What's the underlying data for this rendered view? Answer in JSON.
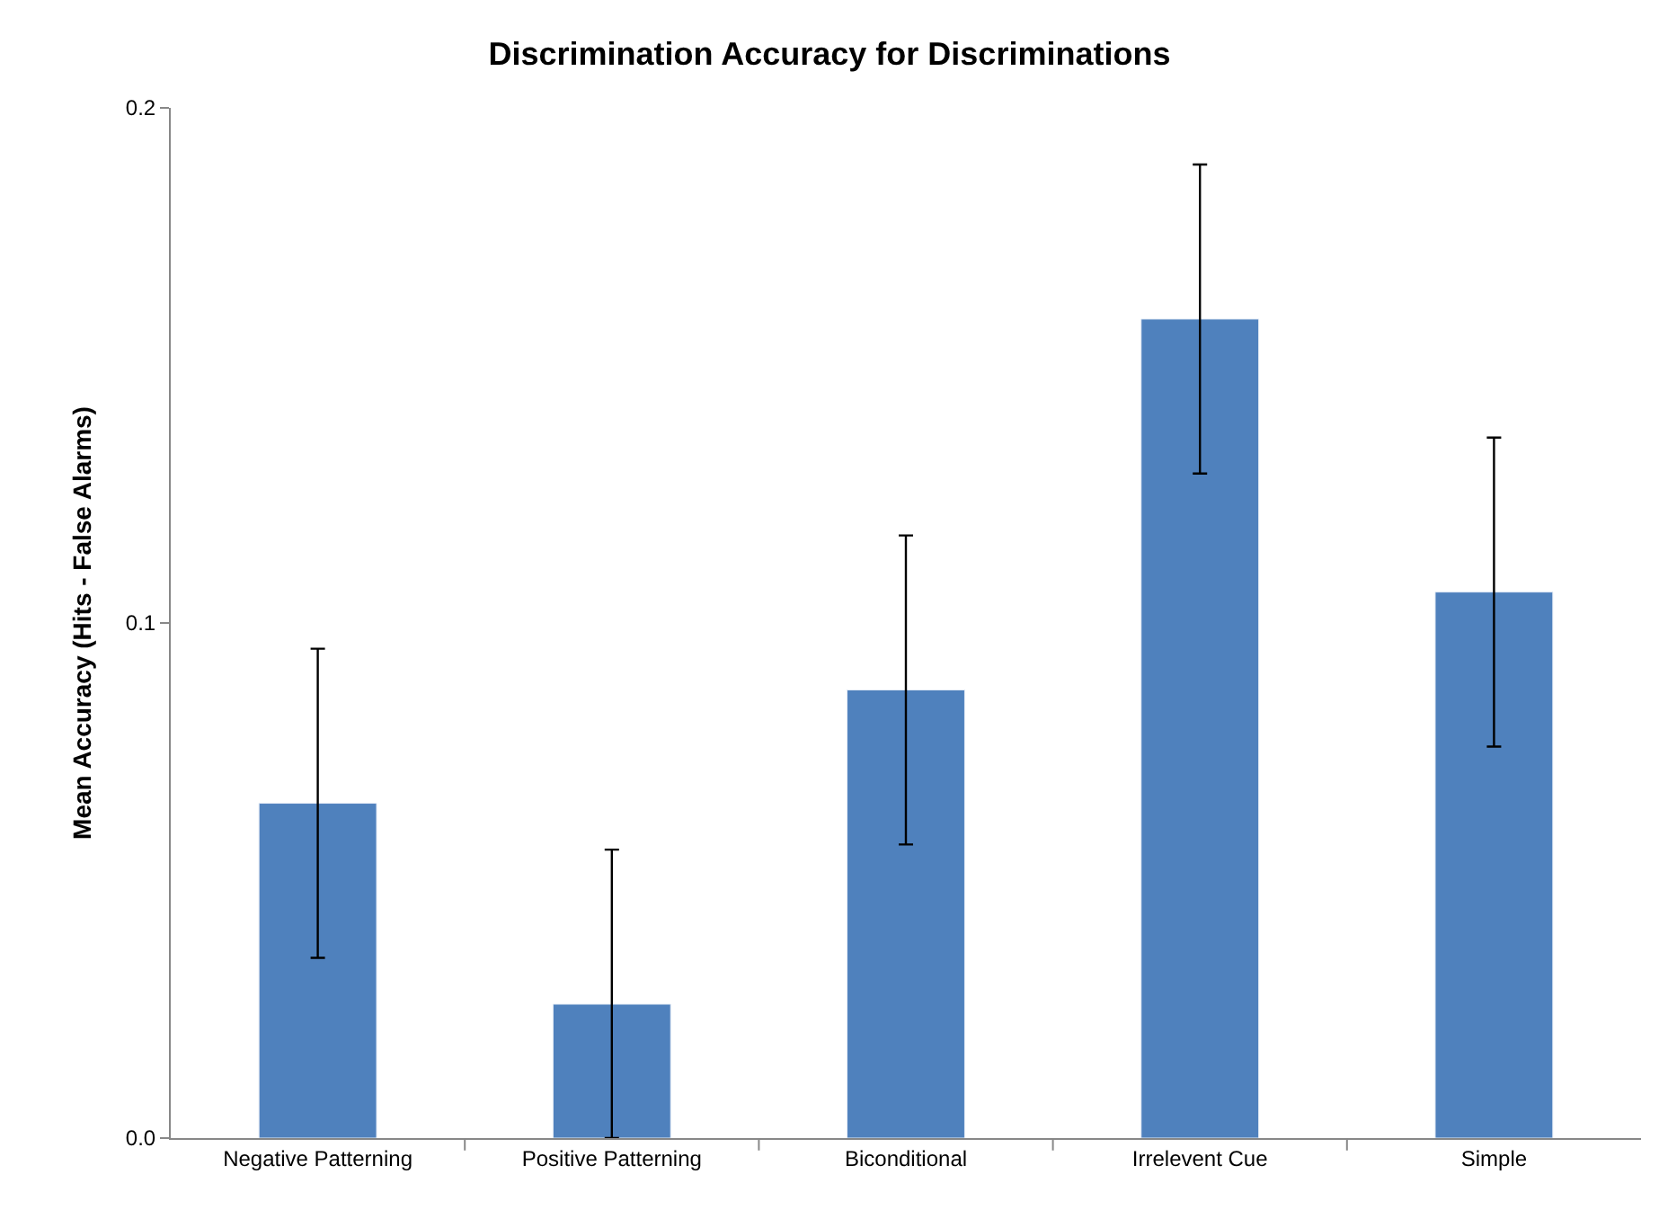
{
  "chart_data": {
    "type": "bar",
    "title": "Discrimination Accuracy for Discriminations",
    "ylabel": "Mean Accuracy (Hits - False Alarms)",
    "categories": [
      "Negative Patterning",
      "Positive Patterning",
      "Biconditional",
      "Irrelevent Cue",
      "Simple"
    ],
    "values": [
      0.065,
      0.026,
      0.087,
      0.159,
      0.106
    ],
    "errors": [
      [
        0.035,
        0.095
      ],
      [
        0,
        0.056
      ],
      [
        0.057,
        0.117
      ],
      [
        0.129,
        0.189
      ],
      [
        0.076,
        0.136
      ]
    ],
    "color": "#4f81bd",
    "ylim": [
      0,
      0.2
    ],
    "yticks": [
      {
        "value": 0,
        "label": "0.0"
      },
      0.1,
      0.2
    ]
  }
}
